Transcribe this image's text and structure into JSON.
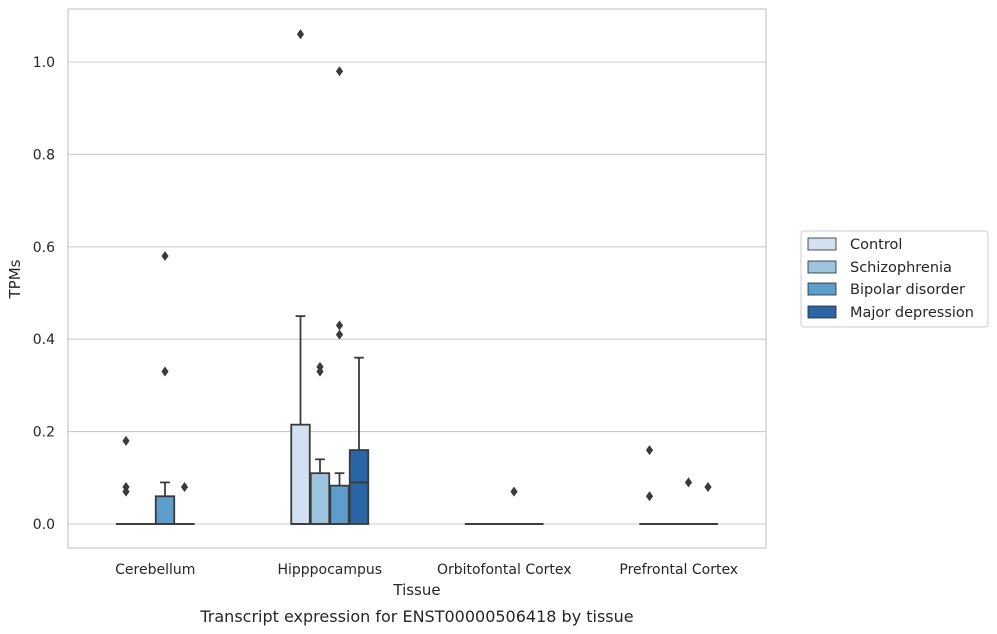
{
  "chart_data": {
    "type": "box",
    "title": "",
    "caption": "Transcript expression for ENST00000506418 by tissue",
    "xlabel": "Tissue",
    "ylabel": "TPMs",
    "ylim": [
      -0.05,
      1.12
    ],
    "yticks": [
      0.0,
      0.2,
      0.4,
      0.6,
      0.8,
      1.0
    ],
    "ytick_labels": [
      "0.0",
      "0.2",
      "0.4",
      "0.6",
      "0.8",
      "1.0"
    ],
    "grid": "horizontal",
    "legend_position": "right",
    "categories": [
      "Cerebellum",
      "Hipppocampus",
      "Orbitofontal Cortex",
      "Prefrontal Cortex"
    ],
    "series": [
      {
        "name": "Control",
        "color": "#d2e1f1",
        "boxes": [
          {
            "q1": 0.0,
            "median": 0.0,
            "q3": 0.0,
            "whisker_low": 0.0,
            "whisker_high": 0.0,
            "outliers": [
              0.18,
              0.08,
              0.07
            ]
          },
          {
            "q1": 0.0,
            "median": 0.0,
            "q3": 0.215,
            "whisker_low": 0.0,
            "whisker_high": 0.45,
            "outliers": [
              1.06
            ]
          },
          {
            "q1": 0.0,
            "median": 0.0,
            "q3": 0.0,
            "whisker_low": 0.0,
            "whisker_high": 0.0,
            "outliers": []
          },
          {
            "q1": 0.0,
            "median": 0.0,
            "q3": 0.0,
            "whisker_low": 0.0,
            "whisker_high": 0.0,
            "outliers": [
              0.16,
              0.06
            ]
          }
        ]
      },
      {
        "name": "Schizophrenia",
        "color": "#9cc4df",
        "boxes": [
          {
            "q1": 0.0,
            "median": 0.0,
            "q3": 0.0,
            "whisker_low": 0.0,
            "whisker_high": 0.0,
            "outliers": []
          },
          {
            "q1": 0.0,
            "median": 0.0,
            "q3": 0.11,
            "whisker_low": 0.0,
            "whisker_high": 0.14,
            "outliers": [
              0.34,
              0.33
            ]
          },
          {
            "q1": 0.0,
            "median": 0.0,
            "q3": 0.0,
            "whisker_low": 0.0,
            "whisker_high": 0.0,
            "outliers": []
          },
          {
            "q1": 0.0,
            "median": 0.0,
            "q3": 0.0,
            "whisker_low": 0.0,
            "whisker_high": 0.0,
            "outliers": []
          }
        ]
      },
      {
        "name": "Bipolar disorder",
        "color": "#5d9dcb",
        "boxes": [
          {
            "q1": 0.0,
            "median": 0.0,
            "q3": 0.06,
            "whisker_low": 0.0,
            "whisker_high": 0.09,
            "outliers": [
              0.58,
              0.33
            ]
          },
          {
            "q1": 0.0,
            "median": 0.0,
            "q3": 0.083,
            "whisker_low": 0.0,
            "whisker_high": 0.11,
            "outliers": [
              0.98,
              0.43,
              0.41
            ]
          },
          {
            "q1": 0.0,
            "median": 0.0,
            "q3": 0.0,
            "whisker_low": 0.0,
            "whisker_high": 0.0,
            "outliers": [
              0.07
            ]
          },
          {
            "q1": 0.0,
            "median": 0.0,
            "q3": 0.0,
            "whisker_low": 0.0,
            "whisker_high": 0.0,
            "outliers": [
              0.09
            ]
          }
        ]
      },
      {
        "name": "Major depression",
        "color": "#2a65a6",
        "boxes": [
          {
            "q1": 0.0,
            "median": 0.0,
            "q3": 0.0,
            "whisker_low": 0.0,
            "whisker_high": 0.0,
            "outliers": [
              0.08
            ]
          },
          {
            "q1": 0.0,
            "median": 0.09,
            "q3": 0.16,
            "whisker_low": 0.0,
            "whisker_high": 0.36,
            "outliers": []
          },
          {
            "q1": 0.0,
            "median": 0.0,
            "q3": 0.0,
            "whisker_low": 0.0,
            "whisker_high": 0.0,
            "outliers": []
          },
          {
            "q1": 0.0,
            "median": 0.0,
            "q3": 0.0,
            "whisker_low": 0.0,
            "whisker_high": 0.0,
            "outliers": [
              0.08
            ]
          }
        ]
      }
    ]
  }
}
